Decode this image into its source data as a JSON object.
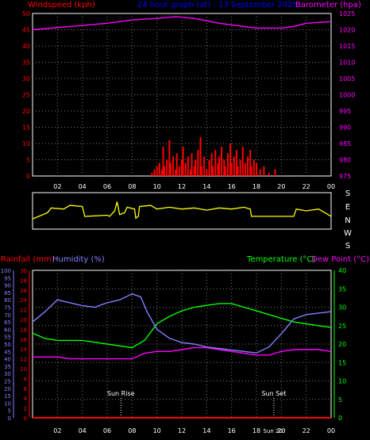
{
  "colors": {
    "wind": "#ff0000",
    "baro": "#ff00ff",
    "title": "#0000ff",
    "dir": "#ffff00",
    "rain": "#ff0000",
    "humidity": "#8080ff",
    "temperature": "#00ff00",
    "dewpoint": "#ff00ff",
    "frame": "#ffffff"
  },
  "header": {
    "windspeed_label": "Windspeed (kph)",
    "title": "24 hour graph (at) : 13 September 2025",
    "barometer_label": "Barometer (hpa)"
  },
  "bottom_labels": {
    "rainfall": "Rainfall (mm)",
    "humidity": "Humidity (%)",
    "temperature": "Temperature (°C)",
    "dewpoint": "Dew Point (°C)"
  },
  "x_ticks": [
    "02",
    "04",
    "06",
    "08",
    "10",
    "12",
    "14",
    "16",
    "18",
    "20",
    "22",
    "00"
  ],
  "compass": [
    "S",
    "E",
    "N",
    "W",
    "S"
  ],
  "annotations": {
    "sun_rise": "Sun Rise",
    "sun_rise_hour": 7.1,
    "sun_set": "Sun Set",
    "sun_set_hour": 19.4,
    "sun_bottom": "Sun 20:"
  },
  "chart_data": [
    {
      "type": "bar",
      "name": "wind",
      "x_range": [
        0,
        24
      ],
      "ylim_left": [
        0,
        50
      ],
      "yticks_left": [
        0,
        5,
        10,
        15,
        20,
        25,
        30,
        35,
        40,
        45,
        50
      ],
      "ylim_right": [
        975,
        1025
      ],
      "yticks_right": [
        975,
        980,
        985,
        990,
        995,
        1000,
        1005,
        1010,
        1015,
        1020,
        1025
      ],
      "wind_gusts": [
        [
          9.6,
          1
        ],
        [
          9.8,
          2
        ],
        [
          10.0,
          3
        ],
        [
          10.2,
          4
        ],
        [
          10.4,
          2
        ],
        [
          10.5,
          9
        ],
        [
          10.6,
          3
        ],
        [
          10.8,
          5
        ],
        [
          11.0,
          11
        ],
        [
          11.1,
          4
        ],
        [
          11.3,
          6
        ],
        [
          11.5,
          2
        ],
        [
          11.6,
          7
        ],
        [
          11.8,
          3
        ],
        [
          12.0,
          5
        ],
        [
          12.1,
          9
        ],
        [
          12.3,
          4
        ],
        [
          12.5,
          6
        ],
        [
          12.7,
          2
        ],
        [
          12.8,
          7
        ],
        [
          13.0,
          3
        ],
        [
          13.1,
          5
        ],
        [
          13.3,
          8
        ],
        [
          13.5,
          12
        ],
        [
          13.6,
          3
        ],
        [
          13.8,
          6
        ],
        [
          14.0,
          2
        ],
        [
          14.2,
          5
        ],
        [
          14.4,
          7
        ],
        [
          14.5,
          3
        ],
        [
          14.7,
          8
        ],
        [
          14.9,
          4
        ],
        [
          15.0,
          6
        ],
        [
          15.2,
          9
        ],
        [
          15.4,
          5
        ],
        [
          15.5,
          3
        ],
        [
          15.7,
          7
        ],
        [
          15.9,
          10
        ],
        [
          16.0,
          4
        ],
        [
          16.2,
          6
        ],
        [
          16.4,
          8
        ],
        [
          16.5,
          3
        ],
        [
          16.7,
          5
        ],
        [
          16.9,
          9
        ],
        [
          17.1,
          4
        ],
        [
          17.3,
          6
        ],
        [
          17.5,
          8
        ],
        [
          17.6,
          3
        ],
        [
          17.8,
          5
        ],
        [
          18.0,
          4
        ],
        [
          18.3,
          2
        ],
        [
          18.6,
          3
        ],
        [
          19.0,
          1
        ],
        [
          19.5,
          2
        ]
      ],
      "baro_points": [
        [
          0,
          1020
        ],
        [
          3,
          1021
        ],
        [
          6,
          1022
        ],
        [
          8,
          1023
        ],
        [
          10,
          1023.5
        ],
        [
          11.5,
          1024
        ],
        [
          13,
          1023.5
        ],
        [
          15,
          1022
        ],
        [
          17,
          1021
        ],
        [
          18,
          1020.5
        ],
        [
          20,
          1020.5
        ],
        [
          21,
          1021
        ],
        [
          22,
          1022
        ],
        [
          24,
          1022.5
        ]
      ]
    },
    {
      "type": "line",
      "name": "wind_direction",
      "x_range": [
        0,
        24
      ],
      "yticks": [
        "S",
        "E",
        "N",
        "W",
        "S"
      ],
      "direction_points": [
        [
          0,
          0.72
        ],
        [
          1.2,
          0.55
        ],
        [
          1.5,
          0.42
        ],
        [
          2.5,
          0.45
        ],
        [
          3,
          0.35
        ],
        [
          4,
          0.38
        ],
        [
          4.2,
          0.65
        ],
        [
          6,
          0.62
        ],
        [
          6.2,
          0.65
        ],
        [
          6.6,
          0.5
        ],
        [
          6.8,
          0.25
        ],
        [
          7,
          0.6
        ],
        [
          7.4,
          0.55
        ],
        [
          7.6,
          0.4
        ],
        [
          8.2,
          0.45
        ],
        [
          8.3,
          0.7
        ],
        [
          8.5,
          0.65
        ],
        [
          8.6,
          0.38
        ],
        [
          9.5,
          0.35
        ],
        [
          10,
          0.45
        ],
        [
          11,
          0.4
        ],
        [
          12,
          0.45
        ],
        [
          13,
          0.42
        ],
        [
          14,
          0.48
        ],
        [
          15,
          0.42
        ],
        [
          16,
          0.45
        ],
        [
          17,
          0.4
        ],
        [
          17.5,
          0.45
        ],
        [
          17.6,
          0.65
        ],
        [
          21,
          0.65
        ],
        [
          21.2,
          0.45
        ],
        [
          22,
          0.5
        ],
        [
          23,
          0.45
        ],
        [
          23.5,
          0.55
        ],
        [
          24,
          0.65
        ]
      ]
    },
    {
      "type": "line",
      "name": "weather",
      "x_range": [
        0,
        24
      ],
      "ylim_humidity": [
        0,
        100
      ],
      "yticks_humidity": [
        0,
        5,
        10,
        15,
        20,
        25,
        30,
        35,
        40,
        45,
        50,
        55,
        60,
        65,
        70,
        75,
        80,
        85,
        90,
        95,
        100
      ],
      "ylim_rain": [
        0,
        30
      ],
      "yticks_rain": [
        0,
        2,
        4,
        6,
        8,
        10,
        12,
        14,
        16,
        18,
        20,
        22,
        24,
        26,
        28,
        30
      ],
      "ylim_temp": [
        0,
        40
      ],
      "yticks_temp": [
        0,
        5,
        10,
        15,
        20,
        25,
        30,
        35,
        40
      ],
      "humidity_points": [
        [
          0,
          65
        ],
        [
          1,
          72
        ],
        [
          2,
          80
        ],
        [
          3,
          78
        ],
        [
          4,
          76
        ],
        [
          5,
          75
        ],
        [
          6,
          78
        ],
        [
          7,
          80
        ],
        [
          8,
          84
        ],
        [
          8.7,
          82
        ],
        [
          9.2,
          72
        ],
        [
          10,
          60
        ],
        [
          11,
          54
        ],
        [
          12,
          51
        ],
        [
          13,
          50
        ],
        [
          14,
          48
        ],
        [
          15,
          47
        ],
        [
          16,
          46
        ],
        [
          17,
          45
        ],
        [
          18,
          44
        ],
        [
          19,
          48
        ],
        [
          20,
          57
        ],
        [
          21,
          67
        ],
        [
          22,
          70
        ],
        [
          23,
          71
        ],
        [
          24,
          72
        ]
      ],
      "temperature_points": [
        [
          0,
          23
        ],
        [
          1,
          21.5
        ],
        [
          2,
          21
        ],
        [
          3,
          21
        ],
        [
          4,
          21
        ],
        [
          5,
          20.5
        ],
        [
          6,
          20
        ],
        [
          7,
          19.5
        ],
        [
          8,
          19
        ],
        [
          9,
          21
        ],
        [
          10,
          25.5
        ],
        [
          11,
          27.5
        ],
        [
          12,
          29
        ],
        [
          13,
          30
        ],
        [
          14,
          30.5
        ],
        [
          15,
          31
        ],
        [
          16,
          31
        ],
        [
          17,
          30
        ],
        [
          18,
          29
        ],
        [
          19,
          28
        ],
        [
          20,
          27
        ],
        [
          21,
          26
        ],
        [
          22,
          25.5
        ],
        [
          23,
          25
        ],
        [
          24,
          24.5
        ]
      ],
      "dewpoint_points": [
        [
          0,
          16.5
        ],
        [
          1,
          16.5
        ],
        [
          2,
          16.5
        ],
        [
          3,
          16
        ],
        [
          4,
          16
        ],
        [
          5,
          16
        ],
        [
          6,
          16
        ],
        [
          7,
          16
        ],
        [
          8,
          16
        ],
        [
          9,
          17.5
        ],
        [
          10,
          18
        ],
        [
          11,
          18
        ],
        [
          12,
          18.5
        ],
        [
          13,
          19
        ],
        [
          14,
          19
        ],
        [
          15,
          18.5
        ],
        [
          16,
          18
        ],
        [
          17,
          17.5
        ],
        [
          18,
          17
        ],
        [
          19,
          17
        ],
        [
          20,
          18
        ],
        [
          21,
          18.5
        ],
        [
          22,
          18.5
        ],
        [
          23,
          18.5
        ],
        [
          24,
          18
        ]
      ],
      "rain_total": 0
    }
  ]
}
